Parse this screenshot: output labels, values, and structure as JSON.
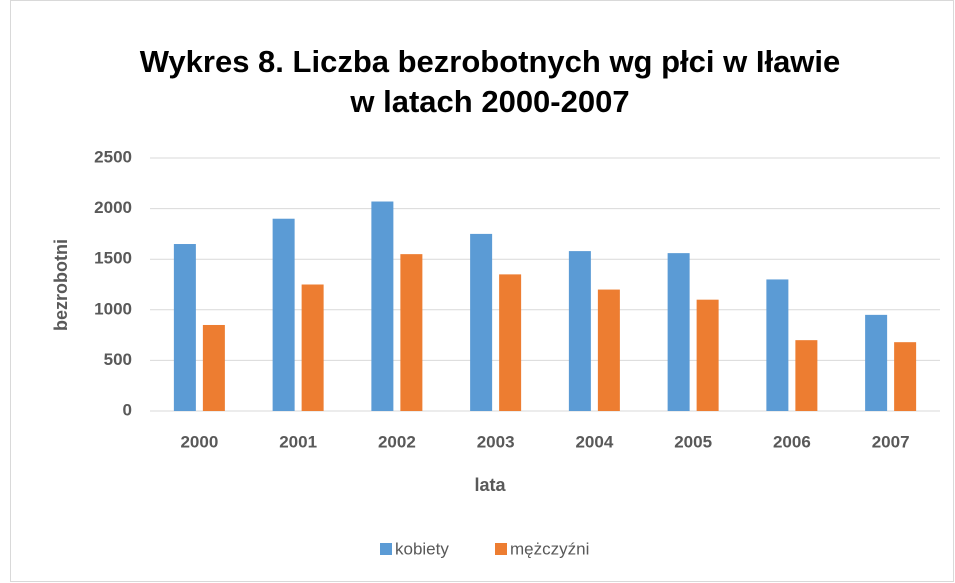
{
  "chart_data": {
    "type": "bar",
    "title": [
      "Wykres 8. Liczba bezrobotnych wg płci w Iławie",
      "w latach 2000-2007"
    ],
    "y_label": "bezrobotni",
    "x_label": "lata",
    "categories": [
      "2000",
      "2001",
      "2002",
      "2003",
      "2004",
      "2005",
      "2006",
      "2007"
    ],
    "series": [
      {
        "name": "kobiety",
        "color": "#5b9bd5",
        "values": [
          1650,
          1900,
          2070,
          1750,
          1580,
          1560,
          1300,
          950
        ]
      },
      {
        "name": "mężczyźni",
        "color": "#ed7d31",
        "values": [
          850,
          1250,
          1550,
          1350,
          1200,
          1100,
          700,
          680
        ]
      }
    ],
    "ylim": [
      0,
      2500
    ],
    "yticks": [
      0,
      500,
      1000,
      1500,
      2000,
      2500
    ],
    "grid": true,
    "legend": "bottom"
  }
}
